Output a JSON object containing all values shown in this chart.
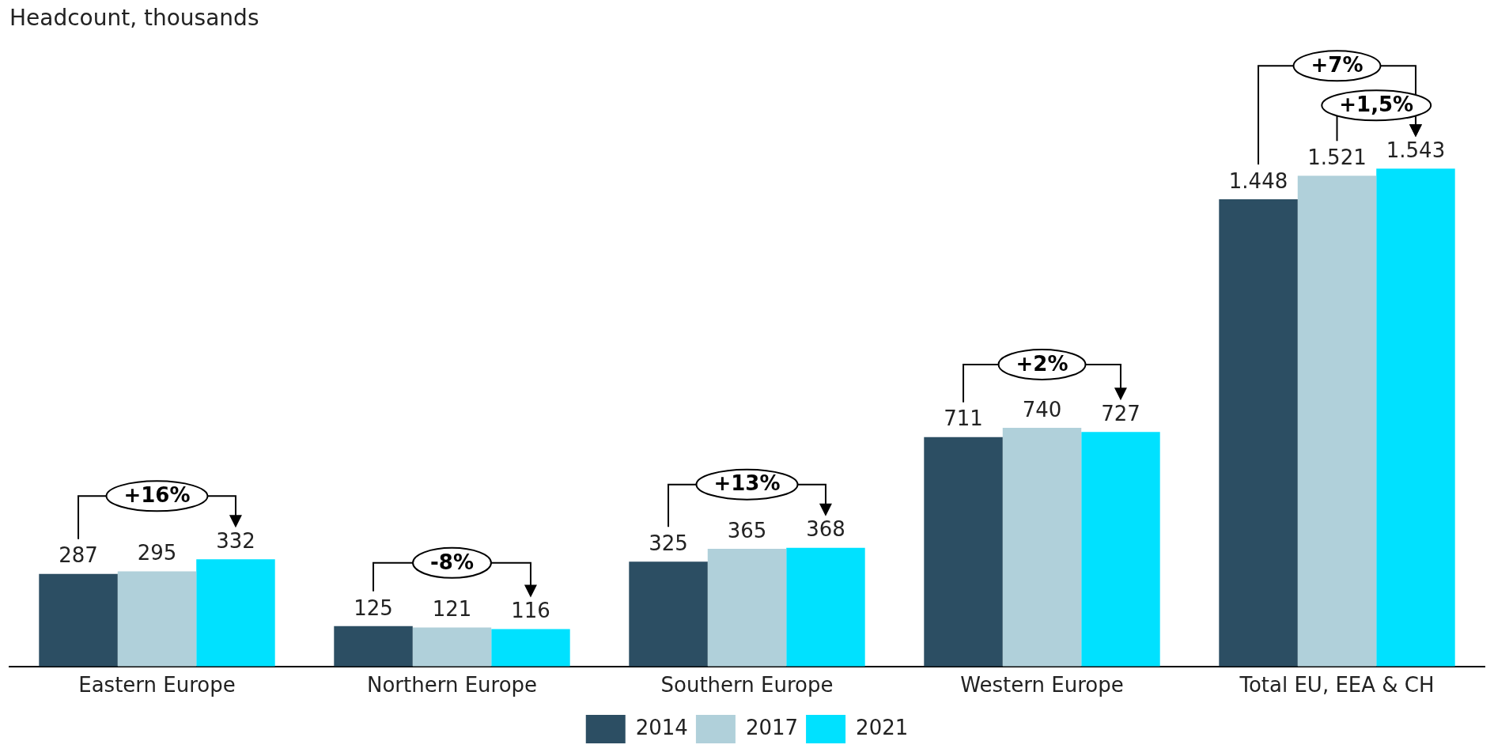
{
  "chart_data": {
    "type": "bar",
    "subtitle": "Headcount, thousands",
    "categories": [
      "Eastern Europe",
      "Northern Europe",
      "Southern Europe",
      "Western Europe",
      "Total EU, EEA & CH"
    ],
    "series": [
      {
        "name": "2014",
        "color": "#2c4e63",
        "values": [
          287,
          125,
          325,
          711,
          1448
        ],
        "value_labels": [
          "287",
          "125",
          "325",
          "711",
          "1.448"
        ]
      },
      {
        "name": "2017",
        "color": "#b0d0da",
        "values": [
          295,
          121,
          365,
          740,
          1521
        ],
        "value_labels": [
          "295",
          "121",
          "365",
          "740",
          "1.521"
        ]
      },
      {
        "name": "2021",
        "color": "#00e1ff",
        "values": [
          332,
          116,
          368,
          727,
          1543
        ],
        "value_labels": [
          "332",
          "116",
          "368",
          "727",
          "1.543"
        ]
      }
    ],
    "annotations": [
      "+16%",
      "-8%",
      "+13%",
      "+2%",
      "+7%",
      "+1,5%"
    ],
    "legend": "bottom",
    "grid": false
  }
}
